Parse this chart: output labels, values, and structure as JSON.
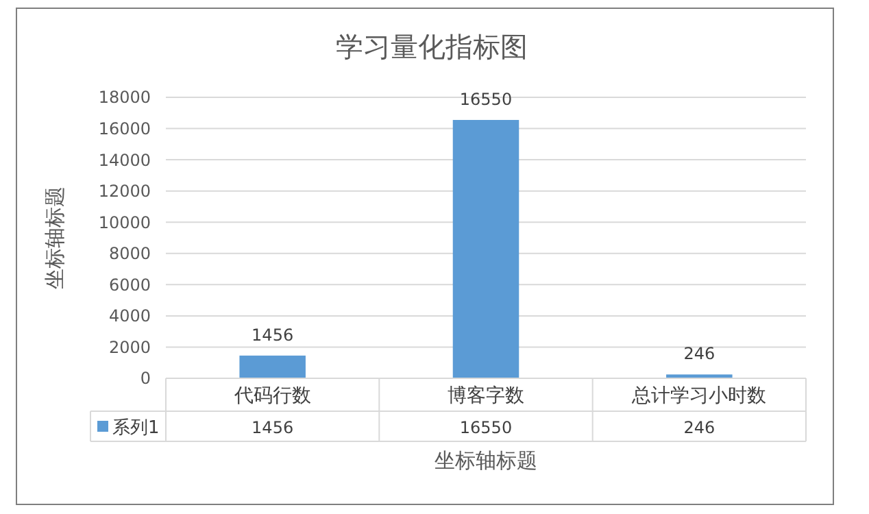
{
  "chart_data": {
    "type": "bar",
    "title": "学习量化指标图",
    "xlabel": "坐标轴标题",
    "ylabel": "坐标轴标题",
    "categories": [
      "代码行数",
      "博客字数",
      "总计学习小时数"
    ],
    "series": [
      {
        "name": "系列1",
        "color": "#5b9bd5",
        "values": [
          1456,
          16550,
          246
        ],
        "value_labels": [
          "1456",
          "16550",
          "246"
        ]
      }
    ],
    "ylim": [
      0,
      18000
    ],
    "yticks": [
      0,
      2000,
      4000,
      6000,
      8000,
      10000,
      12000,
      14000,
      16000,
      18000
    ],
    "annotations": [
      "1456",
      "16550",
      "246"
    ],
    "grid": "y",
    "legend": "bottom"
  }
}
